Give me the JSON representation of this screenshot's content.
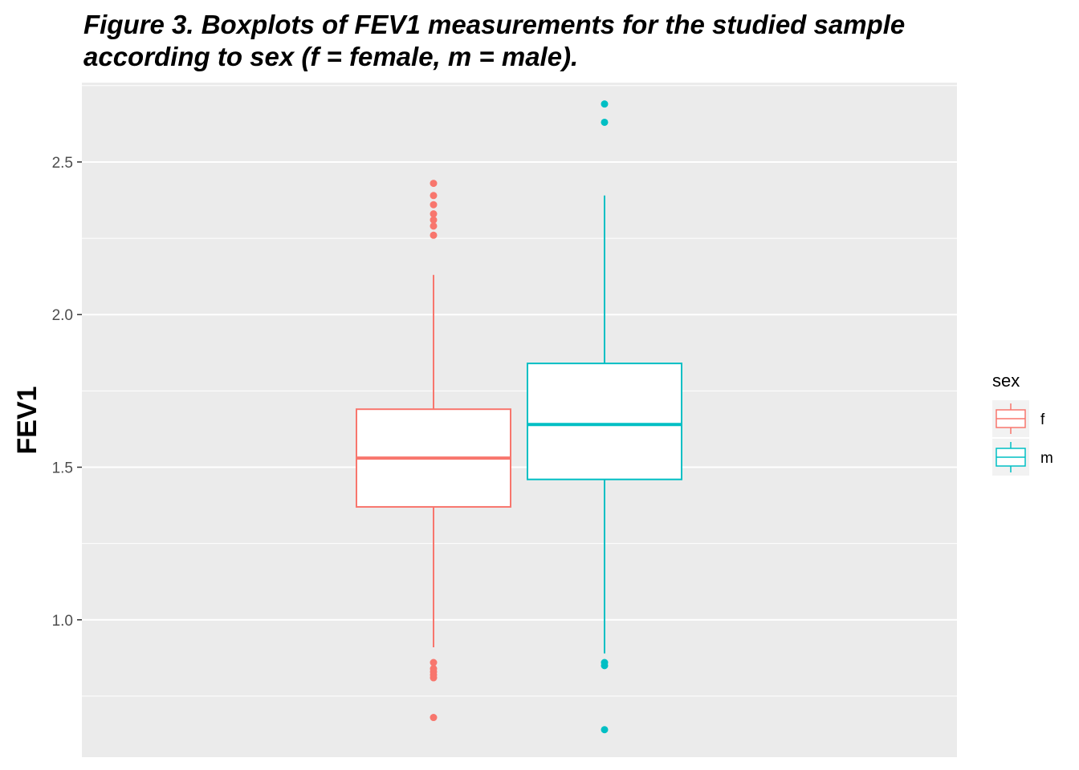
{
  "chart_data": {
    "type": "boxplot",
    "title_lines": [
      "Figure 3. Boxplots of FEV1 measurements for the studied sample",
      "according to sex (f = female, m = male)."
    ],
    "xlabel": "",
    "ylabel": "FEV1",
    "ylim": [
      0.55,
      2.76
    ],
    "yticks": [
      {
        "value": 1.0,
        "label": "1.0"
      },
      {
        "value": 1.5,
        "label": "1.5"
      },
      {
        "value": 2.0,
        "label": "2.0"
      },
      {
        "value": 2.5,
        "label": "2.5"
      }
    ],
    "grid": true,
    "legend": {
      "title": "sex",
      "placement": "right"
    },
    "series": [
      {
        "name": "f",
        "color": "#F8766D",
        "whisker_low": 0.91,
        "q1": 1.37,
        "median": 1.53,
        "q3": 1.69,
        "whisker_high": 2.13,
        "outliers": [
          2.43,
          2.39,
          2.36,
          2.33,
          2.31,
          2.29,
          2.26,
          0.86,
          0.84,
          0.83,
          0.82,
          0.81,
          0.68
        ]
      },
      {
        "name": "m",
        "color": "#00BFC4",
        "whisker_low": 0.89,
        "q1": 1.46,
        "median": 1.64,
        "q3": 1.84,
        "whisker_high": 2.39,
        "outliers": [
          2.69,
          2.63,
          0.86,
          0.85,
          0.64
        ]
      }
    ]
  }
}
